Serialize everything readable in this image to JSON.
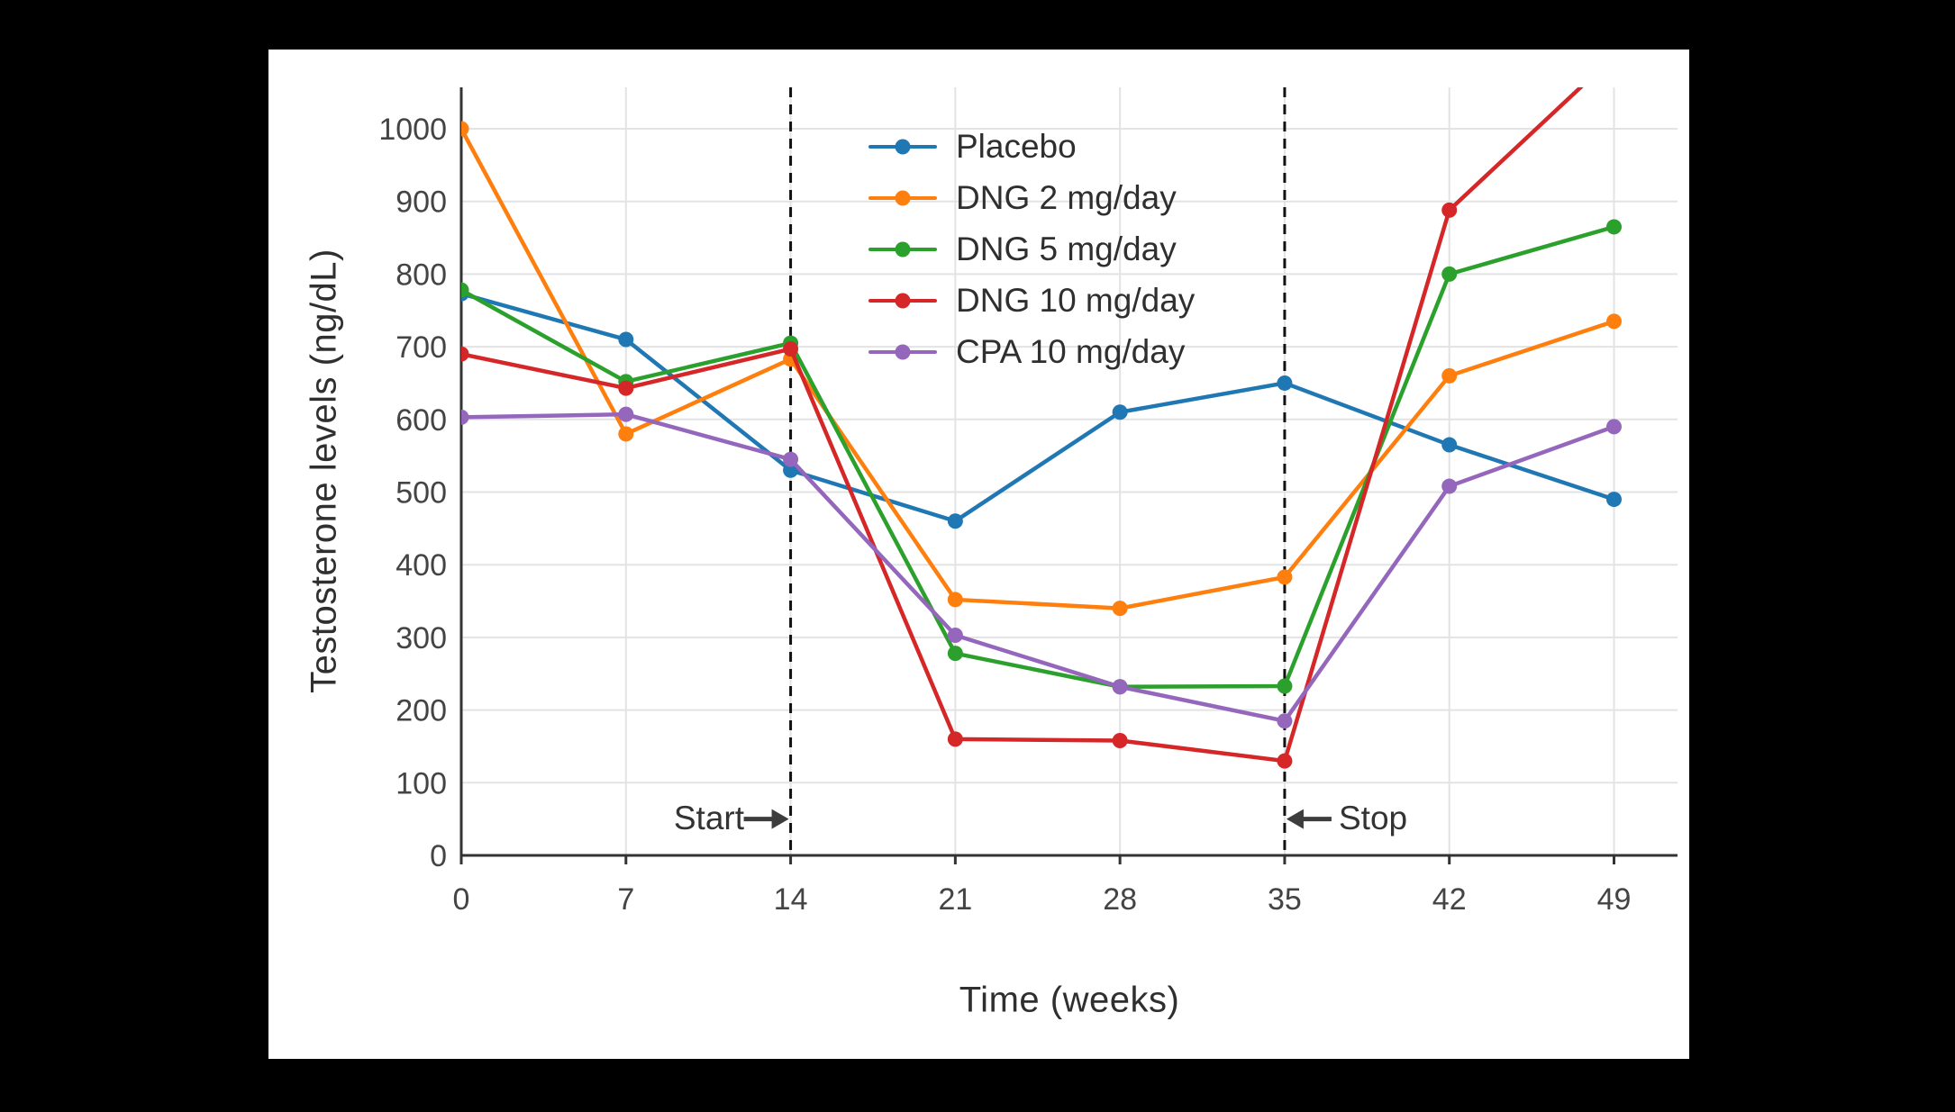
{
  "styles": {
    "page_background": "#000000",
    "panel_background": "#ffffff",
    "grid_color": "#e3e3e3",
    "axis_color": "#333333",
    "tick_text_color": "#444444",
    "title_text_color": "#2f2f2f",
    "dashed_line_color": "#111111",
    "arrow_color": "#3d3d3d"
  },
  "chart_data": {
    "type": "line",
    "title": "",
    "xlabel": "Time (weeks)",
    "ylabel": "Testosterone levels (ng/dL)",
    "x": [
      0,
      7,
      14,
      21,
      28,
      35,
      42,
      49
    ],
    "xticks": [
      0,
      7,
      14,
      21,
      28,
      35,
      42,
      49
    ],
    "yticks": [
      0,
      100,
      200,
      300,
      400,
      500,
      600,
      700,
      800,
      900,
      1000
    ],
    "xlim": [
      0,
      51.7
    ],
    "ylim": [
      0,
      1057
    ],
    "grid": true,
    "legend_position": "top-center-inside",
    "series": [
      {
        "name": "Placebo",
        "color": "#1f77b4",
        "values": [
          773,
          710,
          530,
          460,
          610,
          650,
          565,
          490
        ]
      },
      {
        "name": "DNG 2 mg/day",
        "color": "#ff7f0e",
        "values": [
          1000,
          580,
          683,
          352,
          340,
          383,
          660,
          735
        ]
      },
      {
        "name": "DNG 5 mg/day",
        "color": "#2ca02c",
        "values": [
          778,
          652,
          705,
          278,
          232,
          233,
          800,
          865
        ]
      },
      {
        "name": "DNG 10 mg/day",
        "color": "#d62728",
        "values": [
          690,
          643,
          697,
          160,
          158,
          130,
          888,
          1100
        ]
      },
      {
        "name": "CPA 10 mg/day",
        "color": "#9467bd",
        "values": [
          603,
          607,
          545,
          303,
          232,
          185,
          508,
          590
        ]
      }
    ],
    "event_lines": [
      {
        "x": 14,
        "label": "Start"
      },
      {
        "x": 35,
        "label": "Stop"
      }
    ],
    "annotations": [
      {
        "text": "Start",
        "x": 14,
        "y": 50,
        "side": "left"
      },
      {
        "text": "Stop",
        "x": 35,
        "y": 50,
        "side": "right"
      }
    ]
  }
}
